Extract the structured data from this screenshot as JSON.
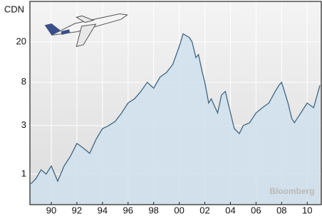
{
  "chart_data": {
    "type": "area",
    "y_label": "CDN",
    "watermark": "Bloomberg",
    "log_y": true,
    "grid": true,
    "color": "#cfe0ec",
    "line_color": "#3f6684",
    "xlim": [
      1988.33,
      2011.1
    ],
    "xticks": [
      {
        "value": 1990,
        "label": "90"
      },
      {
        "value": 1992,
        "label": "92"
      },
      {
        "value": 1994,
        "label": "94"
      },
      {
        "value": 1996,
        "label": "96"
      },
      {
        "value": 1998,
        "label": "98"
      },
      {
        "value": 2000,
        "label": "00"
      },
      {
        "value": 2002,
        "label": "02"
      },
      {
        "value": 2004,
        "label": "04"
      },
      {
        "value": 2006,
        "label": "06"
      },
      {
        "value": 2008,
        "label": "08"
      },
      {
        "value": 2010,
        "label": "10"
      }
    ],
    "ylim": [
      0.5,
      50
    ],
    "yticks": [
      1,
      3,
      8,
      20
    ],
    "x": [
      1988.4,
      1988.8,
      1989.2,
      1989.6,
      1990.0,
      1990.5,
      1991.0,
      1991.5,
      1992.0,
      1992.5,
      1993.0,
      1993.5,
      1994.0,
      1994.5,
      1995.0,
      1995.5,
      1996.0,
      1996.5,
      1997.0,
      1997.5,
      1998.0,
      1998.5,
      1999.0,
      1999.5,
      2000.0,
      2000.3,
      2000.8,
      2001.0,
      2001.3,
      2001.5,
      2001.8,
      2002.0,
      2002.3,
      2002.5,
      2003.0,
      2003.3,
      2003.6,
      2004.0,
      2004.3,
      2004.7,
      2005.0,
      2005.5,
      2006.0,
      2006.5,
      2007.0,
      2007.5,
      2007.8,
      2008.0,
      2008.5,
      2008.8,
      2009.0,
      2009.5,
      2010.0,
      2010.5,
      2011.0
    ],
    "values": [
      0.8,
      0.9,
      1.1,
      1.0,
      1.2,
      0.85,
      1.2,
      1.5,
      2.0,
      1.8,
      1.6,
      2.2,
      2.8,
      3.0,
      3.3,
      4.0,
      5.0,
      5.5,
      6.5,
      8,
      7,
      9,
      10,
      12,
      18,
      24,
      22,
      20,
      14,
      15,
      10,
      8,
      5,
      5.5,
      4,
      6,
      6.5,
      4,
      2.8,
      2.5,
      3,
      3.2,
      4,
      4.5,
      5,
      6.5,
      7.5,
      8,
      5,
      3.5,
      3.2,
      4,
      5,
      4.5,
      7.5
    ]
  }
}
